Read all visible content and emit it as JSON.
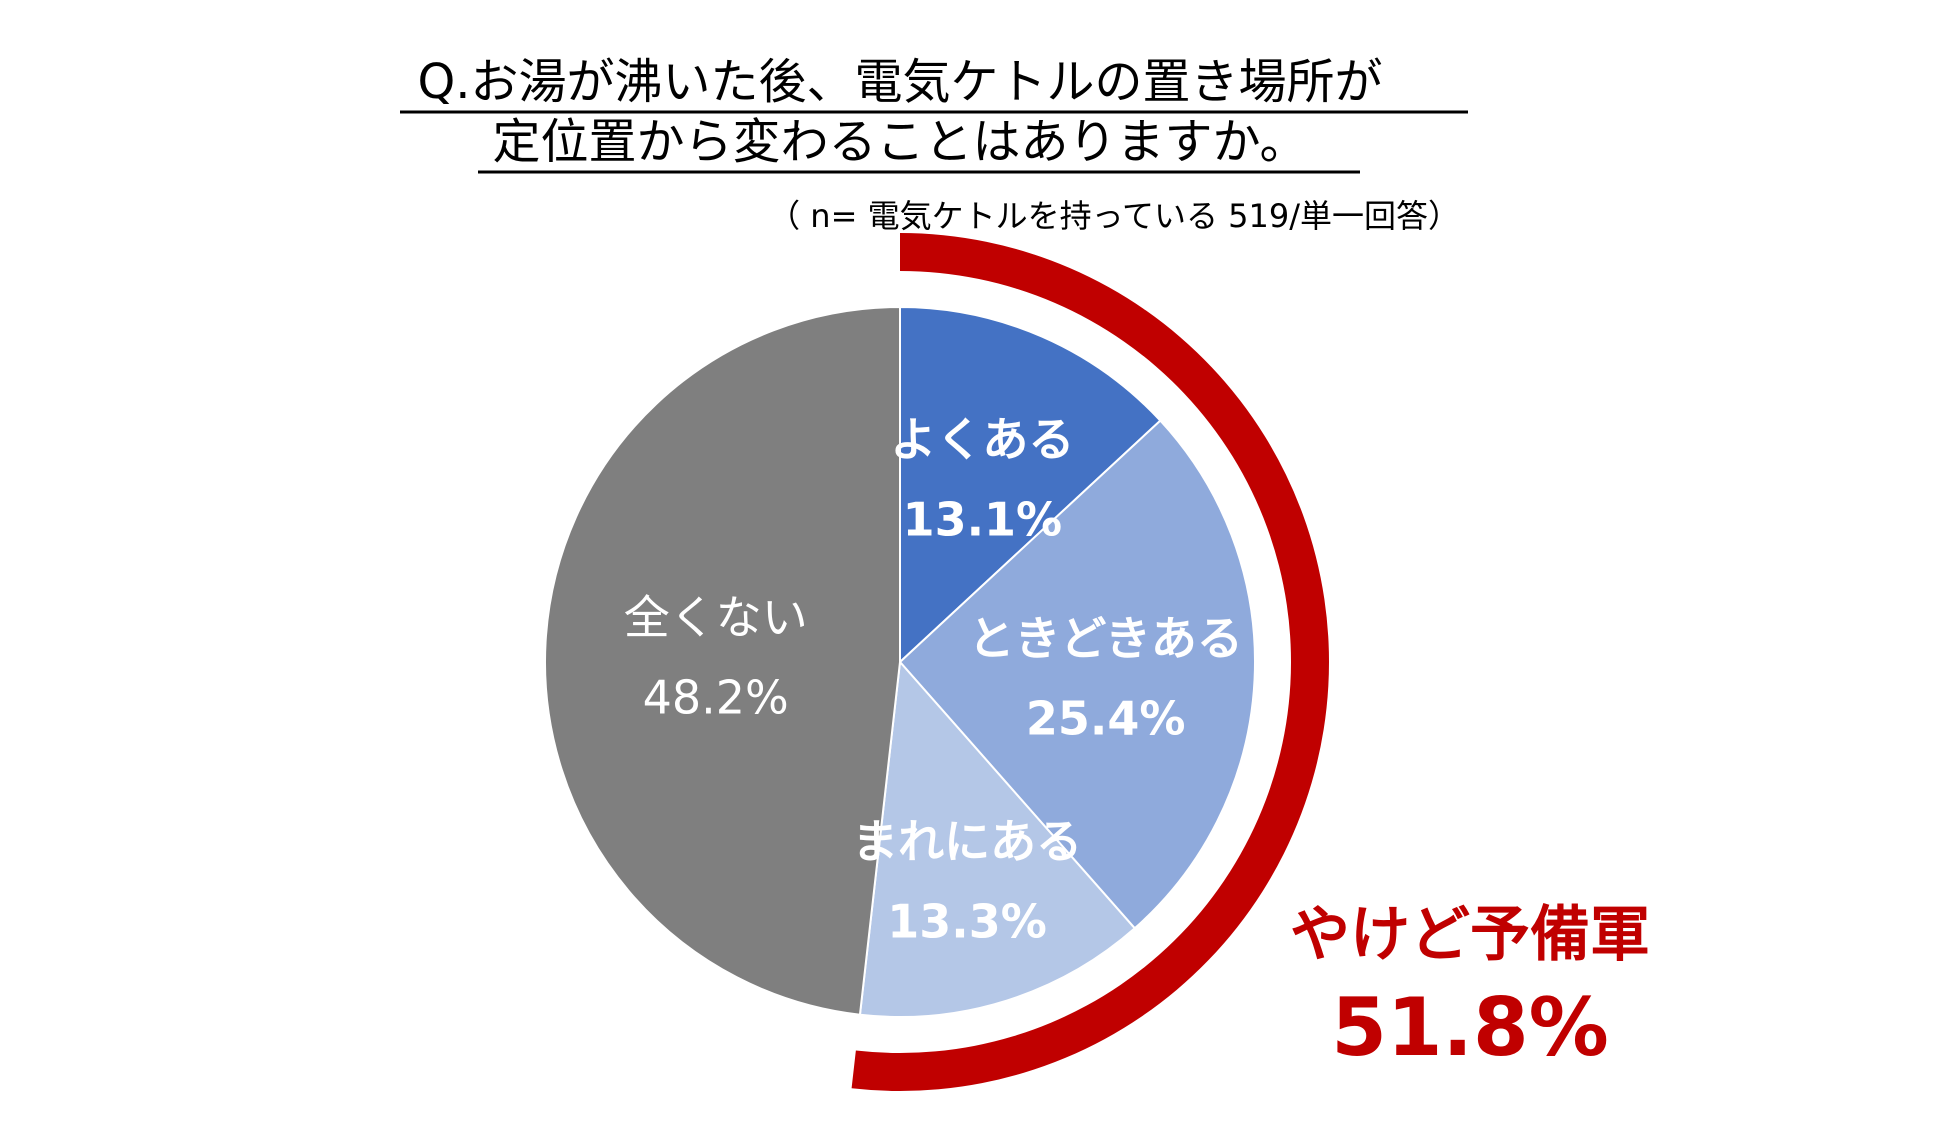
{
  "chart_data": {
    "type": "pie",
    "title_lines": [
      "Q.お湯が沸いた後、電気ケトルの置き場所が",
      "定位置から変わることはありますか。"
    ],
    "subtitle": "（ n= 電気ケトルを持っている 519/単一回答）",
    "slices": [
      {
        "label": "よくある",
        "value": 13.1,
        "value_text": "13.1%",
        "color": "#4472c4",
        "label_color": "#ffffff",
        "bold": true
      },
      {
        "label": "ときどきある",
        "value": 25.4,
        "value_text": "25.4%",
        "color": "#8faadc",
        "label_color": "#ffffff",
        "bold": true
      },
      {
        "label": "まれにある",
        "value": 13.3,
        "value_text": "13.3%",
        "color": "#b4c7e7",
        "label_color": "#ffffff",
        "bold": true
      },
      {
        "label": "全くない",
        "value": 48.2,
        "value_text": "48.2%",
        "color": "#7f7f7f",
        "label_color": "#ffffff",
        "bold": false
      }
    ],
    "highlight": {
      "label": "やけど予備軍",
      "value": 51.8,
      "value_text": "51.8%",
      "color": "#c00000"
    }
  }
}
